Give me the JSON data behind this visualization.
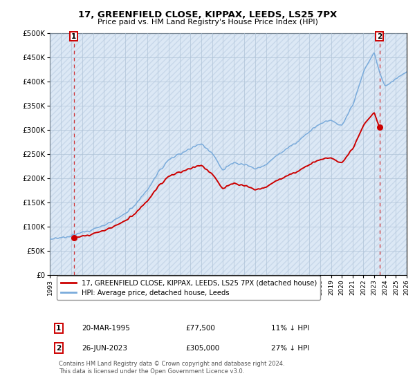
{
  "title": "17, GREENFIELD CLOSE, KIPPAX, LEEDS, LS25 7PX",
  "subtitle": "Price paid vs. HM Land Registry's House Price Index (HPI)",
  "ylim": [
    0,
    500000
  ],
  "yticks": [
    0,
    50000,
    100000,
    150000,
    200000,
    250000,
    300000,
    350000,
    400000,
    450000,
    500000
  ],
  "ytick_labels": [
    "£0",
    "£50K",
    "£100K",
    "£150K",
    "£200K",
    "£250K",
    "£300K",
    "£350K",
    "£400K",
    "£450K",
    "£500K"
  ],
  "hpi_color": "#7aabdb",
  "price_color": "#cc0000",
  "annotation_color": "#cc0000",
  "bg_color": "#dce8f5",
  "hatch_color": "#c8d8ea",
  "grid_color": "#b0c4d8",
  "sale1_date": "20-MAR-1995",
  "sale1_price": 77500,
  "sale1_year": 1995.21,
  "sale1_hpi_pct": "11% ↓ HPI",
  "sale2_date": "26-JUN-2023",
  "sale2_price": 305000,
  "sale2_year": 2023.49,
  "sale2_hpi_pct": "27% ↓ HPI",
  "legend_label1": "17, GREENFIELD CLOSE, KIPPAX, LEEDS, LS25 7PX (detached house)",
  "legend_label2": "HPI: Average price, detached house, Leeds",
  "footnote": "Contains HM Land Registry data © Crown copyright and database right 2024.\nThis data is licensed under the Open Government Licence v3.0.",
  "xmin_year": 1993,
  "xmax_year": 2026,
  "xtick_years": [
    1993,
    1994,
    1995,
    1996,
    1997,
    1998,
    1999,
    2000,
    2001,
    2002,
    2003,
    2004,
    2005,
    2006,
    2007,
    2008,
    2009,
    2010,
    2011,
    2012,
    2013,
    2014,
    2015,
    2016,
    2017,
    2018,
    2019,
    2020,
    2021,
    2022,
    2023,
    2024,
    2025,
    2026
  ],
  "hpi_years": [
    1993,
    1994,
    1995,
    1996,
    1997,
    1998,
    1999,
    2000,
    2001,
    2002,
    2003,
    2004,
    2005,
    2006,
    2007,
    2008,
    2009,
    2010,
    2011,
    2012,
    2013,
    2014,
    2015,
    2016,
    2017,
    2018,
    2019,
    2020,
    2021,
    2022,
    2023.0,
    2023.5,
    2024,
    2025,
    2026
  ],
  "hpi_vals": [
    75000,
    78000,
    82000,
    88000,
    95000,
    103000,
    114000,
    128000,
    148000,
    175000,
    210000,
    238000,
    250000,
    262000,
    272000,
    252000,
    218000,
    232000,
    228000,
    220000,
    228000,
    248000,
    262000,
    278000,
    296000,
    312000,
    320000,
    308000,
    350000,
    420000,
    460000,
    418000,
    390000,
    405000,
    420000
  ]
}
